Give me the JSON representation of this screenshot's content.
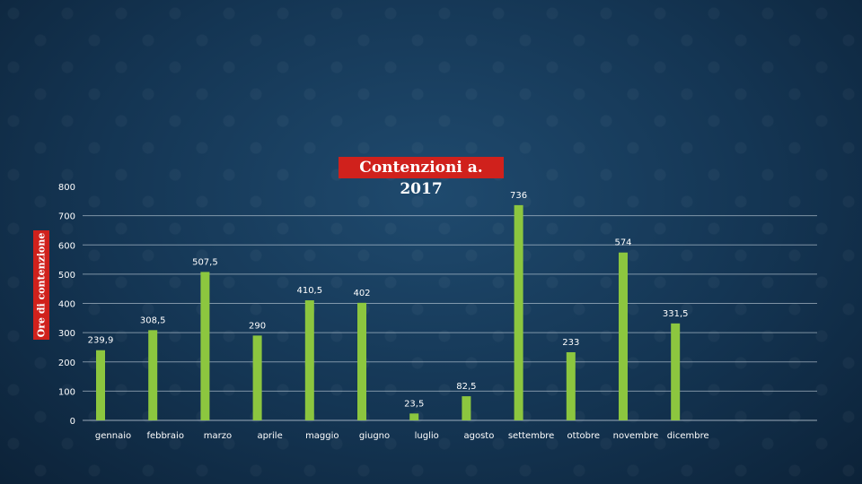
{
  "chart_data": {
    "type": "bar",
    "title": "Contenzioni a. 2017",
    "ylabel": "Ore di contenzione",
    "xlabel": "",
    "ylim": [
      0,
      800
    ],
    "yticks": [
      0,
      100,
      200,
      300,
      400,
      500,
      600,
      700,
      800
    ],
    "grid": true,
    "categories": [
      "gennaio",
      "febbraio",
      "marzo",
      "aprile",
      "maggio",
      "giugno",
      "luglio",
      "agosto",
      "settembre",
      "ottobre",
      "novembre",
      "dicembre"
    ],
    "values": [
      239.9,
      308.5,
      507.5,
      290,
      410.5,
      402,
      23.5,
      82.5,
      736,
      233,
      574,
      331.5
    ],
    "data_labels": [
      "239,9",
      "308,5",
      "507,5",
      "290",
      "410,5",
      "402",
      "23,5",
      "82,5",
      "736",
      "233",
      "574",
      "331,5"
    ],
    "bar_color": "#8cc63f",
    "title_bg_color": "#d0211c"
  }
}
